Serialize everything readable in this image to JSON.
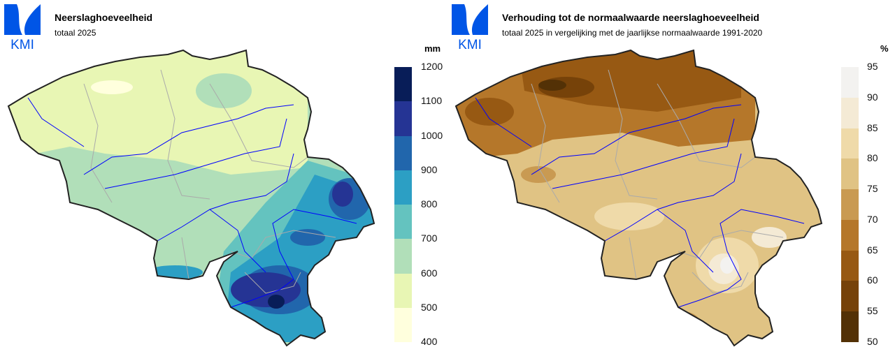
{
  "logo": {
    "text": "KMI",
    "color": "#0055e6"
  },
  "left": {
    "title": "Neerslaghoeveelheid",
    "subtitle": "totaal 2025",
    "unit": "mm",
    "legend_ticks": [
      "1200",
      "1100",
      "1000",
      "900",
      "800",
      "700",
      "600",
      "500",
      "400"
    ],
    "legend_colors": [
      "#081d58",
      "#253494",
      "#2166ac",
      "#2c9fc4",
      "#64c3bf",
      "#b1dfb9",
      "#e8f6b4",
      "#ffffdd"
    ]
  },
  "right": {
    "title": "Verhouding tot de normaalwaarde neerslaghoeveelheid",
    "subtitle": "totaal 2025 in vergelijking met de jaarlijkse normaalwaarde 1991-2020",
    "unit": "%",
    "legend_ticks": [
      "95",
      "90",
      "85",
      "80",
      "75",
      "70",
      "65",
      "60",
      "55",
      "50"
    ],
    "legend_colors": [
      "#f3f2f0",
      "#f4ead5",
      "#efdaa9",
      "#e0c384",
      "#c99a52",
      "#b5772a",
      "#975913",
      "#764209",
      "#533106"
    ]
  },
  "colors": {
    "rivers": "#0000ff",
    "borders": "#aaaaaa",
    "outline": "#222222"
  }
}
